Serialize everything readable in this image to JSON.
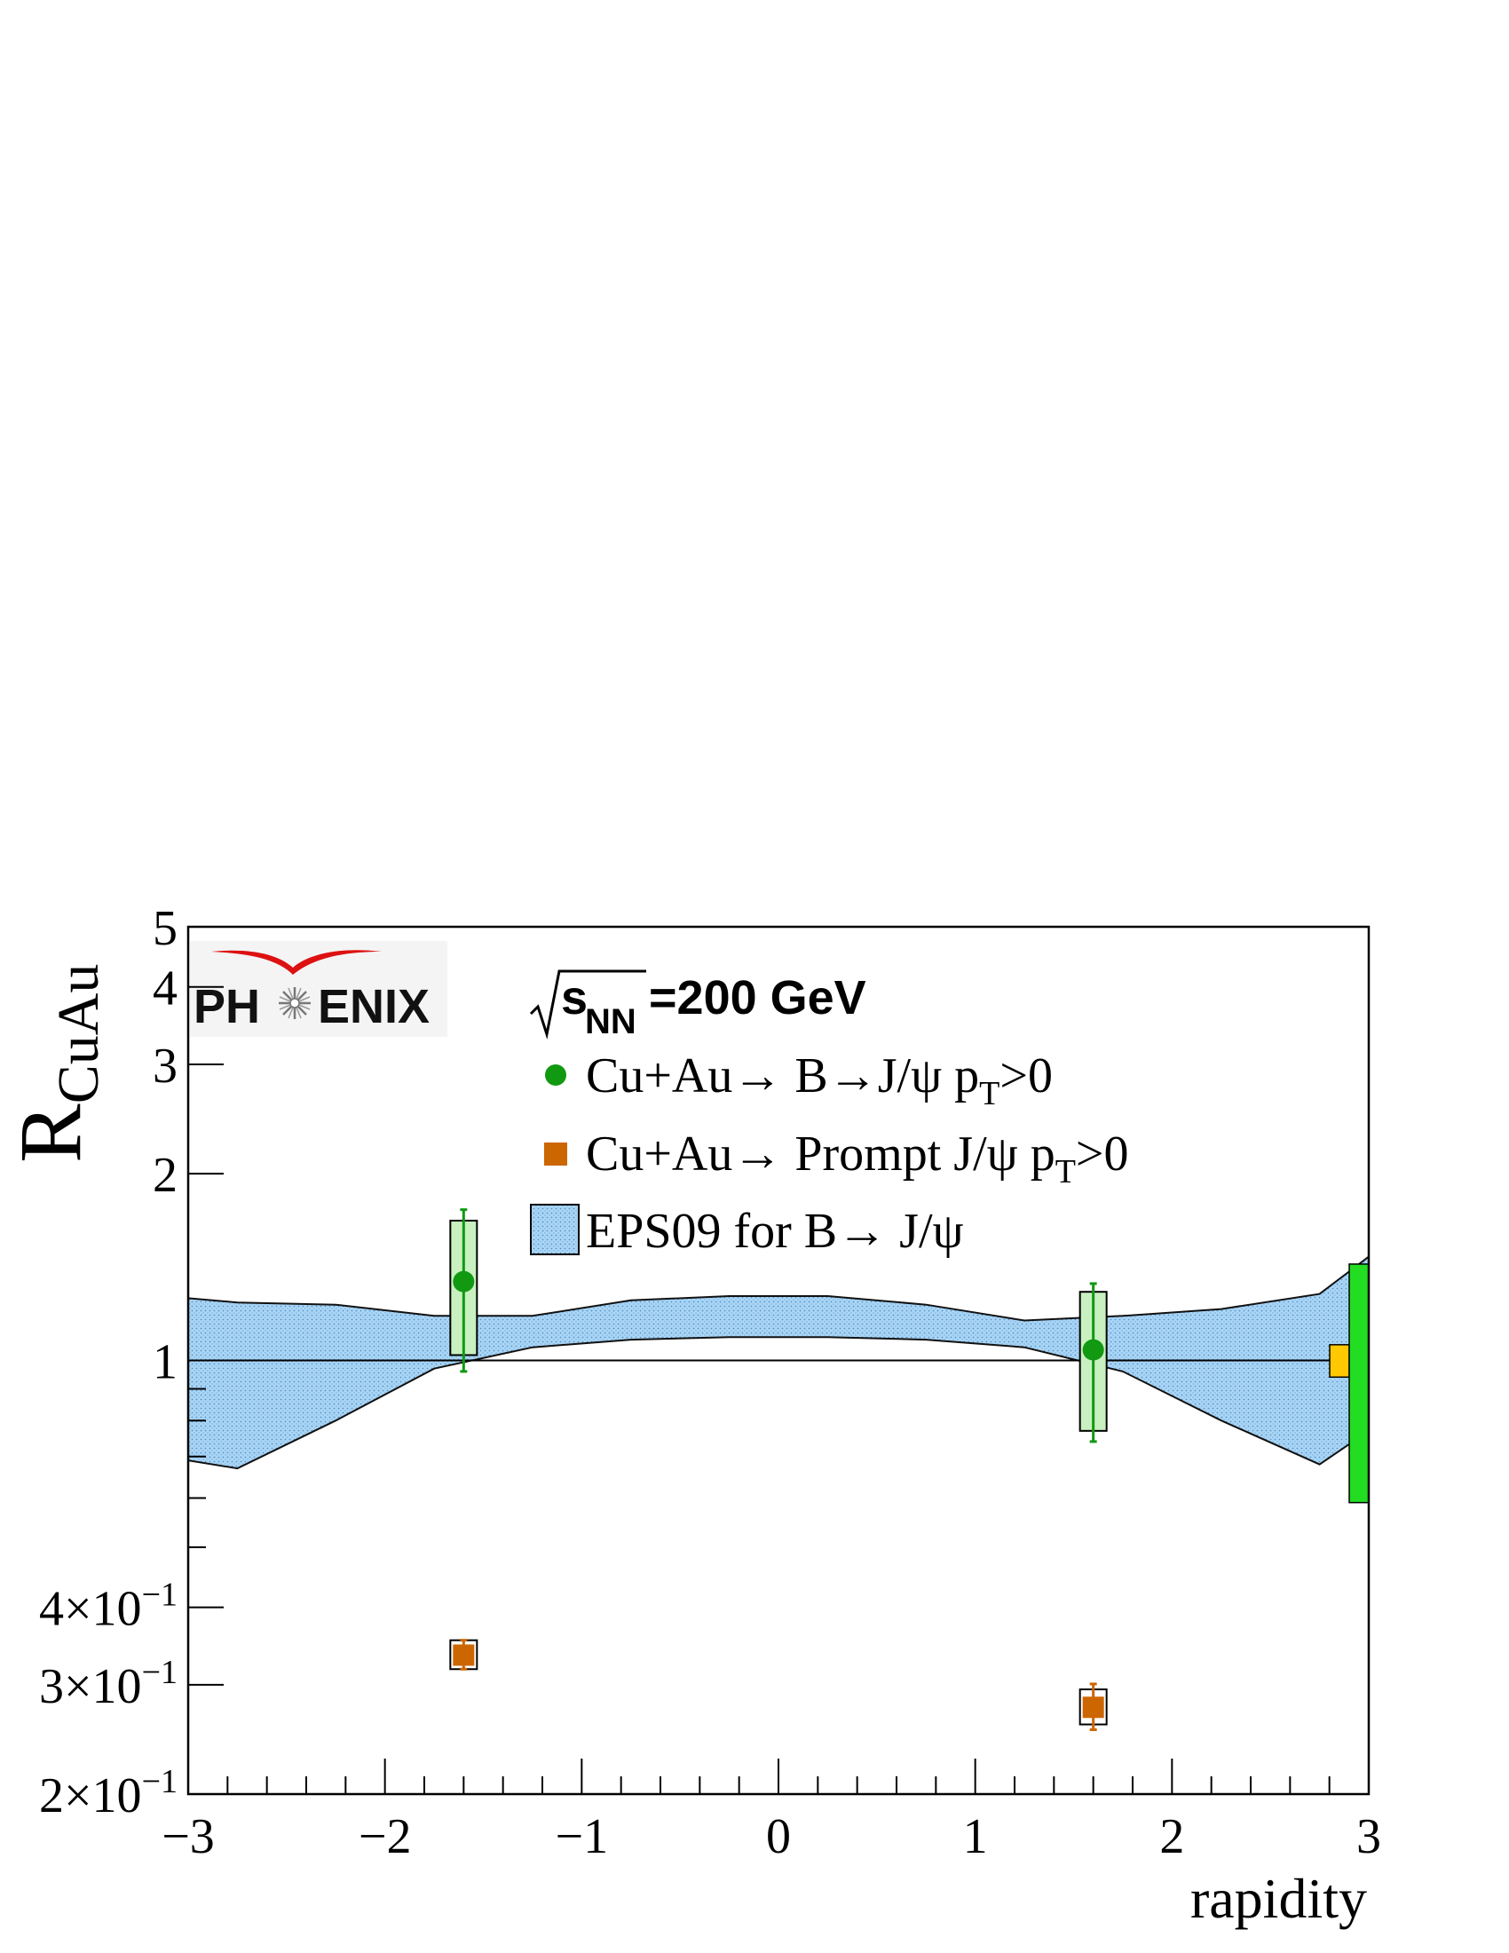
{
  "chart_data": {
    "type": "scatter",
    "title": "",
    "xlabel": "rapidity",
    "ylabel_main": "R",
    "ylabel_sub": "CuAu",
    "x_range": [
      -3,
      3
    ],
    "y_range": [
      0.2,
      5
    ],
    "y_scale": "log",
    "grid": false,
    "x_ticks": [
      {
        "value": -3,
        "label": "−3"
      },
      {
        "value": -2,
        "label": "−2"
      },
      {
        "value": -1,
        "label": "−1"
      },
      {
        "value": 0,
        "label": "0"
      },
      {
        "value": 1,
        "label": "1"
      },
      {
        "value": 2,
        "label": "2"
      },
      {
        "value": 3,
        "label": "3"
      }
    ],
    "y_ticks": [
      {
        "value": 0.2,
        "mantissa": "2",
        "exp": "−1"
      },
      {
        "value": 0.3,
        "mantissa": "3",
        "exp": "−1"
      },
      {
        "value": 0.4,
        "mantissa": "4",
        "exp": "−1"
      },
      {
        "value": 1,
        "label": "1"
      },
      {
        "value": 2,
        "label": "2"
      },
      {
        "value": 3,
        "label": "3"
      },
      {
        "value": 4,
        "label": "4"
      },
      {
        "value": 5,
        "label": "5"
      }
    ],
    "reference_line": 1,
    "energy": {
      "s": "s",
      "sub": "NN",
      "rest": "=200 GeV"
    },
    "legend_placement": "top-center",
    "legend": [
      {
        "marker": "circle",
        "color": "#119911",
        "parts": [
          "Cu+Au→ B→J/ψ p",
          "T",
          ">0"
        ]
      },
      {
        "marker": "square",
        "color": "#cc6600",
        "parts": [
          "Cu+Au→ Prompt J/ψ p",
          "T",
          ">0"
        ]
      },
      {
        "marker": "band",
        "color": "#a8d4f5",
        "parts": [
          "EPS09 for B→ J/ψ"
        ]
      }
    ],
    "series": [
      {
        "name": "Cu+Au→ B→J/ψ pT>0",
        "marker": "circle",
        "color": "#119911",
        "box_fill": "#c8f0c0",
        "points": [
          {
            "x": -1.6,
            "y": 1.34,
            "stat_low": 0.96,
            "stat_high": 1.75,
            "sys_low": 1.02,
            "sys_high": 1.68
          },
          {
            "x": 1.6,
            "y": 1.04,
            "stat_low": 0.74,
            "stat_high": 1.33,
            "sys_low": 0.77,
            "sys_high": 1.29
          }
        ]
      },
      {
        "name": "Cu+Au→ Prompt J/ψ pT>0",
        "marker": "square",
        "color": "#cc6600",
        "box_fill": "#ffffff",
        "points": [
          {
            "x": -1.6,
            "y": 0.335,
            "stat_low": 0.318,
            "stat_high": 0.354,
            "sys_low": 0.318,
            "sys_high": 0.354
          },
          {
            "x": 1.6,
            "y": 0.276,
            "stat_low": 0.254,
            "stat_high": 0.301,
            "sys_low": 0.259,
            "sys_high": 0.295
          }
        ]
      }
    ],
    "band": {
      "name": "EPS09 for B→ J/ψ",
      "fill": "#a8d4f5",
      "x": [
        -3,
        -2.75,
        -2.25,
        -1.75,
        -1.25,
        -0.75,
        -0.25,
        0.25,
        0.75,
        1.25,
        1.75,
        2.25,
        2.75,
        3
      ],
      "upper": [
        1.26,
        1.24,
        1.23,
        1.18,
        1.18,
        1.25,
        1.27,
        1.27,
        1.23,
        1.16,
        1.18,
        1.21,
        1.28,
        1.47
      ],
      "lower": [
        0.69,
        0.67,
        0.8,
        0.97,
        1.05,
        1.08,
        1.09,
        1.09,
        1.08,
        1.05,
        0.96,
        0.8,
        0.68,
        0.77
      ]
    },
    "global_uncertainties": [
      {
        "color": "#ffc800",
        "low": 0.94,
        "high": 1.06
      },
      {
        "color": "#22dd22",
        "low": 0.59,
        "high": 1.43
      }
    ]
  },
  "logo": {
    "text_left": "PH",
    "text_right": "ENIX"
  }
}
